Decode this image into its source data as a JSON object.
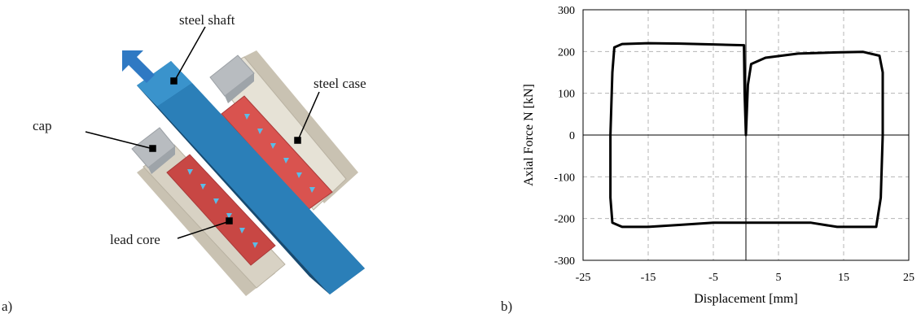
{
  "panel_a": {
    "tag": "a)",
    "labels": {
      "steel_shaft": "steel shaft",
      "steel_case": "steel case",
      "cap": "cap",
      "lead_core": "lead core"
    },
    "colors": {
      "shaft": "#2b7fb8",
      "shaft_dark": "#1f5f8c",
      "case": "#e6e2d6",
      "case_shadow": "#c9c2b2",
      "cap": "#b8bcc0",
      "lead": "#d9534f",
      "lead_dark": "#a93a3a",
      "arrow": "#2f79c3",
      "flow_arrow": "#5bbbe6"
    },
    "icons": [
      "arrow-up-left",
      "flow-arrow"
    ]
  },
  "panel_b": {
    "tag": "b)",
    "chart_data": {
      "type": "line",
      "title": "",
      "xlabel": "Displacement [mm]",
      "ylabel": "Axial Force N [kN]",
      "xlim": [
        -25,
        25
      ],
      "ylim": [
        -300,
        300
      ],
      "xticks": [
        "-25",
        "-15",
        "-5",
        "5",
        "15",
        "25"
      ],
      "yticks": [
        "300",
        "200",
        "100",
        "0",
        "-100",
        "-200",
        "-300"
      ],
      "grid": true,
      "series": [
        {
          "values": [
            [
              0,
              -210
            ],
            [
              -5,
              -210
            ],
            [
              -10,
              -215
            ],
            [
              -15,
              -220
            ],
            [
              -19,
              -220
            ],
            [
              -20.5,
              -210
            ],
            [
              -20.8,
              -150
            ],
            [
              -20.8,
              0
            ],
            [
              -20.5,
              150
            ],
            [
              -20.2,
              210
            ],
            [
              -19,
              218
            ],
            [
              -15,
              220
            ],
            [
              -10,
              219
            ],
            [
              -5,
              217
            ],
            [
              -0.3,
              215
            ],
            [
              -0.2,
              100
            ],
            [
              0,
              0
            ],
            [
              0.3,
              120
            ],
            [
              0.8,
              170
            ],
            [
              3,
              185
            ],
            [
              8,
              195
            ],
            [
              14,
              198
            ],
            [
              18,
              199
            ],
            [
              20.5,
              190
            ],
            [
              21,
              150
            ],
            [
              21,
              0
            ],
            [
              20.7,
              -150
            ],
            [
              20,
              -220
            ],
            [
              18,
              -220
            ],
            [
              14,
              -220
            ],
            [
              12,
              -215
            ],
            [
              10,
              -210
            ],
            [
              5,
              -210
            ],
            [
              0,
              -210
            ]
          ]
        }
      ]
    }
  }
}
